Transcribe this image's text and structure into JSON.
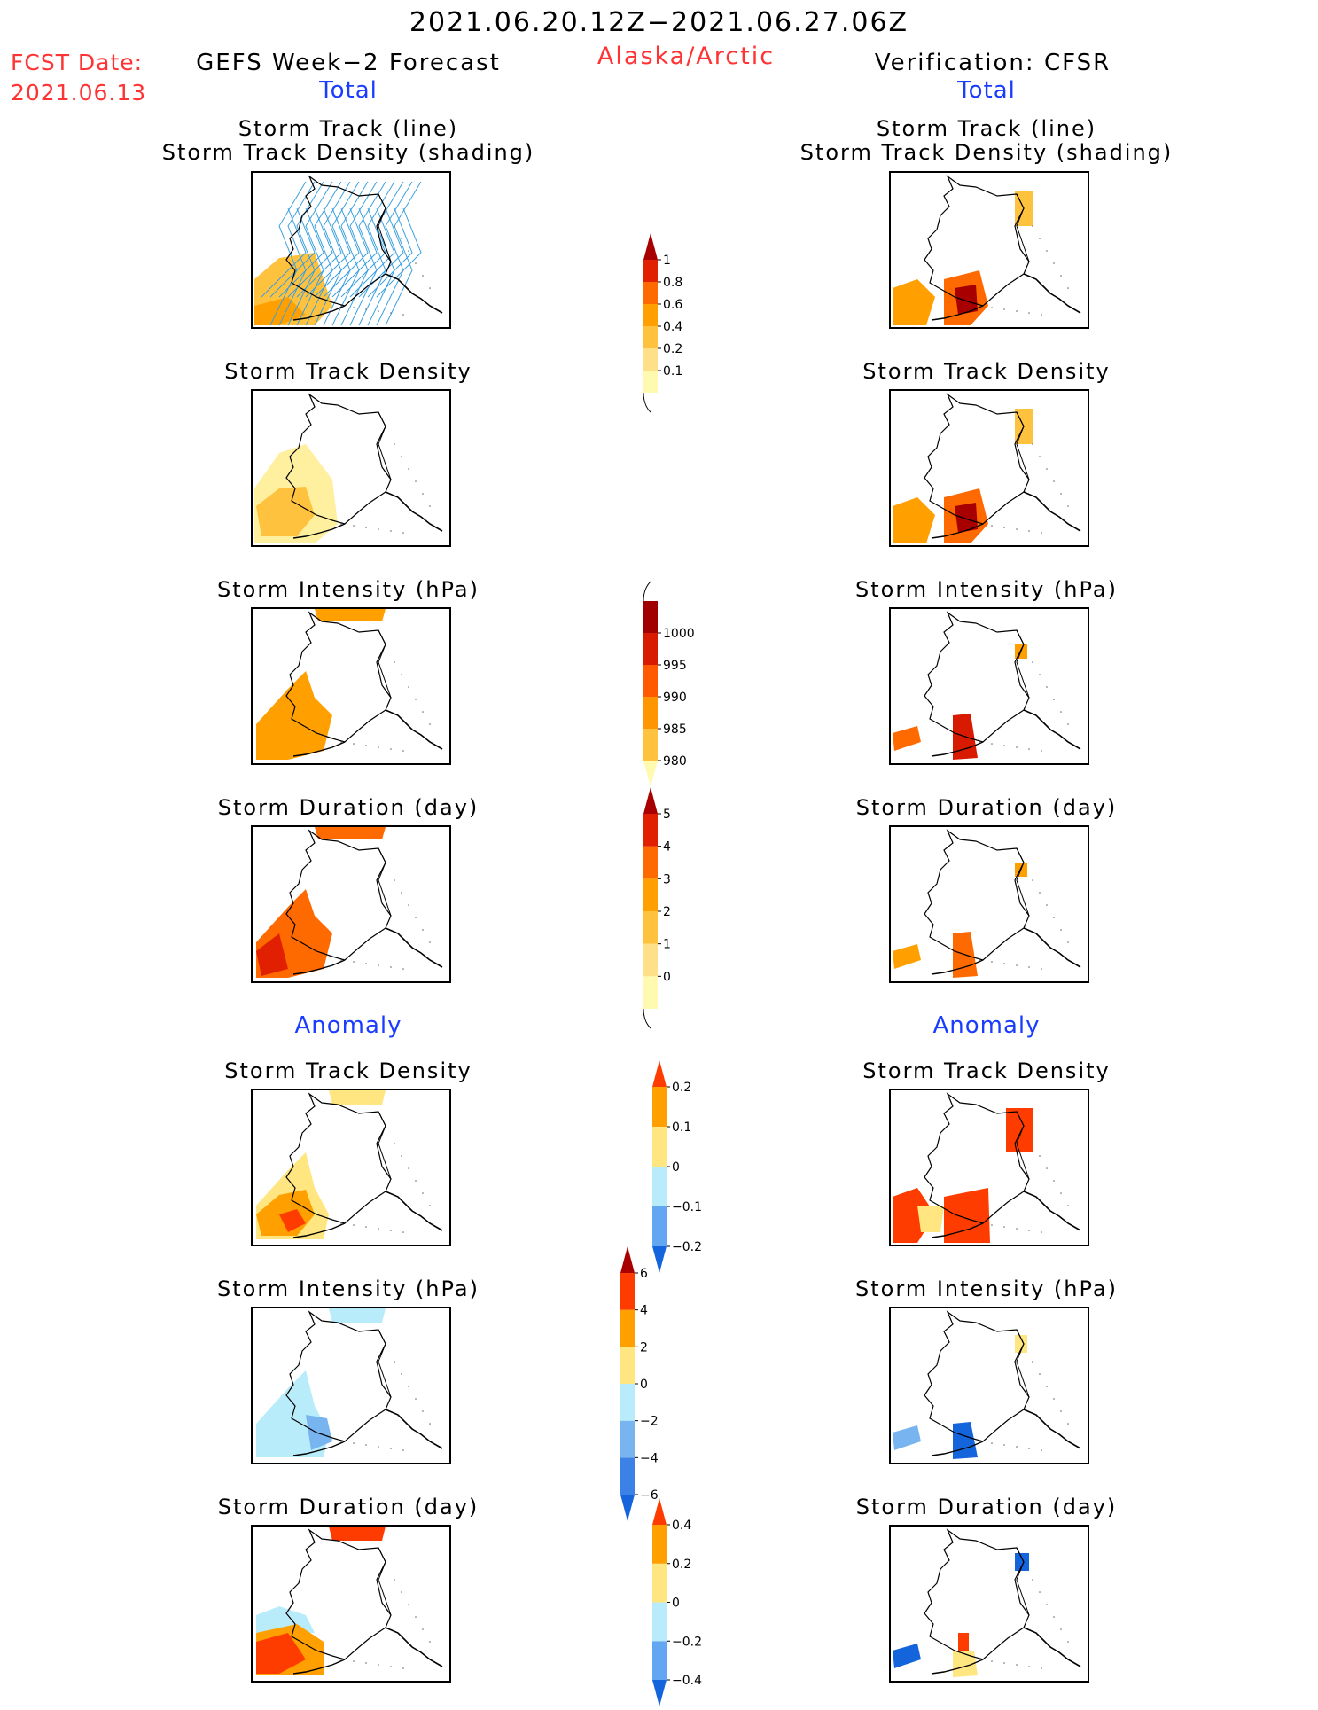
{
  "header": {
    "period": "2021.06.20.12Z−2021.06.27.06Z",
    "region": "Alaska/Arctic",
    "fcst_label": "FCST Date:",
    "fcst_date": "2021.06.13",
    "left_title": "GEFS Week−2 Forecast",
    "right_title": "Verification: CFSR",
    "total_label": "Total",
    "anomaly_label": "Anomaly"
  },
  "panels": {
    "track_line": "Storm Track (line)",
    "track_shading": "Storm Track Density (shading)",
    "density": "Storm Track Density",
    "intensity": "Storm Intensity (hPa)",
    "duration": "Storm Duration (day)"
  },
  "colorbars": {
    "density_total": {
      "levels": [
        "0.1",
        "0.2",
        "0.4",
        "0.6",
        "0.8",
        "1"
      ],
      "colors": [
        "#fffab0",
        "#ffe089",
        "#ffc23f",
        "#ffa000",
        "#ff6a00",
        "#e02000",
        "#a80000"
      ],
      "tails": "max"
    },
    "intensity_total": {
      "levels": [
        "1000",
        "995",
        "990",
        "985",
        "980"
      ],
      "colors": [
        "#fffab0",
        "#ffc23f",
        "#ff9500",
        "#ff5a00",
        "#d71a00",
        "#a00000"
      ],
      "tails": "min"
    },
    "duration_total": {
      "levels": [
        "0",
        "1",
        "2",
        "3",
        "4",
        "5"
      ],
      "colors": [
        "#fffab0",
        "#ffe089",
        "#ffc23f",
        "#ffa000",
        "#ff6a00",
        "#e02000",
        "#a80000"
      ],
      "tails": "max"
    },
    "density_anom": {
      "levels": [
        "−0.2",
        "−0.1",
        "0",
        "0.1",
        "0.2"
      ],
      "colors": [
        "#1464dc",
        "#63a7f2",
        "#b9ecfa",
        "#ffe680",
        "#ffa000",
        "#ff3c00"
      ],
      "tails": "both"
    },
    "intensity_anom": {
      "levels": [
        "−6",
        "−4",
        "−2",
        "0",
        "2",
        "4",
        "6"
      ],
      "colors": [
        "#1464dc",
        "#3c82e6",
        "#78b4f0",
        "#b9ecfa",
        "#ffe680",
        "#ffa000",
        "#ff3c00",
        "#a80000"
      ],
      "tails": "both"
    },
    "duration_anom": {
      "levels": [
        "−0.4",
        "−0.2",
        "0",
        "0.2",
        "0.4"
      ],
      "colors": [
        "#1464dc",
        "#63a7f2",
        "#b9ecfa",
        "#ffe680",
        "#ffa000",
        "#ff3c00"
      ],
      "tails": "both"
    }
  }
}
